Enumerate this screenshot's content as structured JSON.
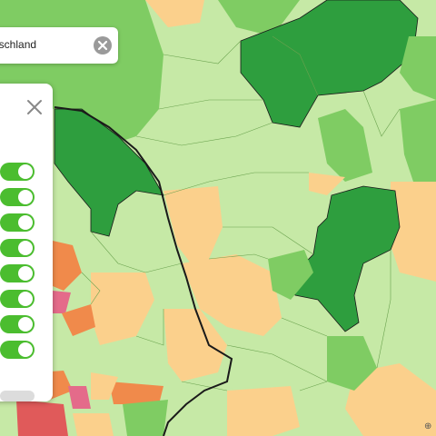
{
  "search": {
    "value": "eutschland",
    "clear_icon": "close-circle-icon"
  },
  "filter_panel": {
    "close_icon": "close-icon",
    "toggles": [
      {
        "state": "on"
      },
      {
        "state": "on"
      },
      {
        "state": "on"
      },
      {
        "state": "on"
      },
      {
        "state": "on"
      },
      {
        "state": "on"
      },
      {
        "state": "on"
      },
      {
        "state": "on"
      }
    ],
    "toggle_color": "#4bbd2f"
  },
  "map": {
    "type": "choropleth",
    "colors": {
      "dark_green": "#2e9e3e",
      "mid_green": "#7fcc63",
      "light_green": "#c6e9a6",
      "peach": "#fbd08c",
      "orange": "#f08a4b",
      "red": "#e05a5a",
      "pink": "#e46b8a"
    },
    "marker_glyph": "⊕"
  }
}
